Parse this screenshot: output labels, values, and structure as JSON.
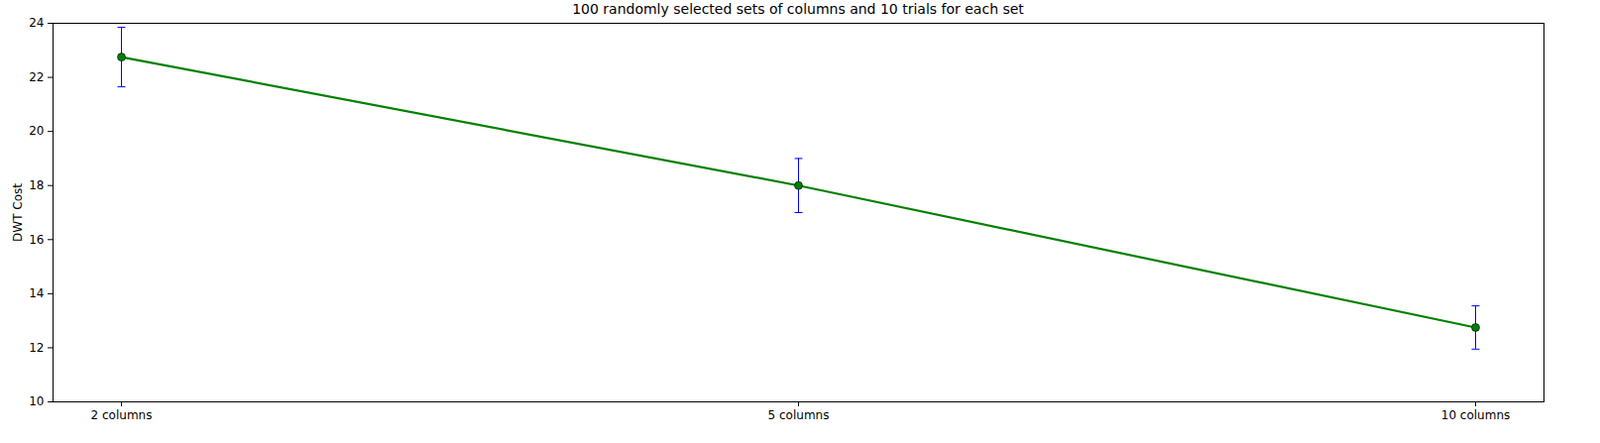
{
  "chart_data": {
    "type": "line",
    "title": "100 randomly selected sets of columns and 10 trials for each set",
    "y_label": "DWT Cost",
    "categories": [
      "2 columns",
      "5 columns",
      "10 columns"
    ],
    "values": [
      22.75,
      18.0,
      12.75
    ],
    "errors": [
      1.1,
      1.0,
      0.8
    ],
    "color": "#008000",
    "marker": "o",
    "ylim": [
      10,
      24
    ],
    "yticks": [
      10,
      12,
      14,
      16,
      18,
      20,
      22,
      24
    ]
  }
}
